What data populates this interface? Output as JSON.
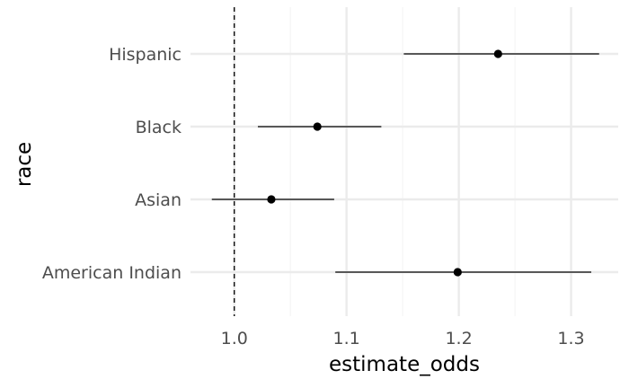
{
  "chart_data": {
    "type": "forest",
    "xlabel": "estimate_odds",
    "ylabel": "race",
    "xlim": [
      0.961,
      1.342
    ],
    "x_ticks": [
      1.0,
      1.1,
      1.2,
      1.3
    ],
    "x_tick_labels": [
      "1.0",
      "1.1",
      "1.2",
      "1.3"
    ],
    "reference_line": 1.0,
    "categories": [
      "American Indian",
      "Asian",
      "Black",
      "Hispanic"
    ],
    "points": [
      {
        "category": "American Indian",
        "estimate": 1.199,
        "low": 1.09,
        "high": 1.318
      },
      {
        "category": "Asian",
        "estimate": 1.033,
        "low": 0.98,
        "high": 1.089
      },
      {
        "category": "Black",
        "estimate": 1.074,
        "low": 1.021,
        "high": 1.131
      },
      {
        "category": "Hispanic",
        "estimate": 1.235,
        "low": 1.151,
        "high": 1.325
      }
    ],
    "grid": true
  },
  "colors": {
    "grid_major": "#ebebeb",
    "grid_minor": "#f5f5f5",
    "point": "#000000",
    "text": "#4d4d4d"
  }
}
